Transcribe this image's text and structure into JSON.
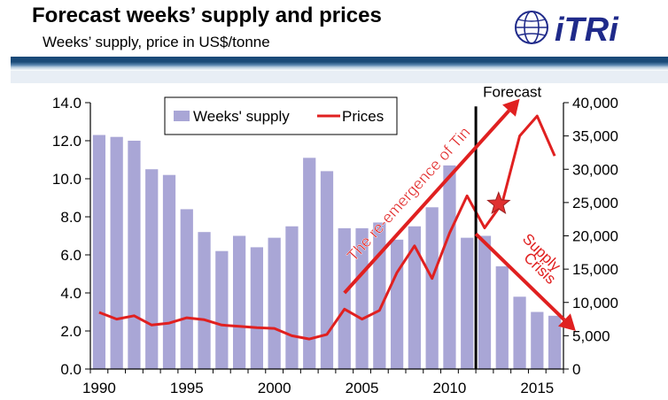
{
  "header": {
    "title": "Forecast weeks’ supply and prices",
    "subtitle": "Weeks’ supply, price in US$/tonne",
    "logo_text": "iTRi"
  },
  "chart_data": {
    "type": "bar+line",
    "x": [
      1990,
      1991,
      1992,
      1993,
      1994,
      1995,
      1996,
      1997,
      1998,
      1999,
      2000,
      2001,
      2002,
      2003,
      2004,
      2005,
      2006,
      2007,
      2008,
      2009,
      2010,
      2011,
      2012,
      2013,
      2014,
      2015,
      2016
    ],
    "series": [
      {
        "name": "Weeks' supply",
        "type": "bar",
        "axis": "left",
        "color": "#a9a6d6",
        "values": [
          12.3,
          12.2,
          12.0,
          10.5,
          10.2,
          8.4,
          7.2,
          6.2,
          7.0,
          6.4,
          6.9,
          7.5,
          11.1,
          10.4,
          7.4,
          7.4,
          7.7,
          6.8,
          7.5,
          8.5,
          10.7,
          6.9,
          7.0,
          5.4,
          3.8,
          3.0,
          2.8
        ]
      },
      {
        "name": "Prices",
        "type": "line",
        "axis": "right",
        "color": "#e02020",
        "values": [
          8500,
          7500,
          8000,
          6600,
          6900,
          7700,
          7400,
          6600,
          6400,
          6200,
          6100,
          5000,
          4500,
          5200,
          9000,
          7500,
          8800,
          14500,
          18500,
          13600,
          20400,
          26000,
          21200,
          24900,
          35000,
          38000,
          32000
        ]
      }
    ],
    "y_left": {
      "min": 0,
      "max": 14,
      "ticks": [
        "0.0",
        "2.0",
        "4.0",
        "6.0",
        "8.0",
        "10.0",
        "12.0",
        "14.0"
      ]
    },
    "y_right": {
      "min": 0,
      "max": 40000,
      "ticks": [
        "0",
        "5,000",
        "10,000",
        "15,000",
        "20,000",
        "25,000",
        "30,000",
        "35,000",
        "40,000"
      ]
    },
    "x_ticks": [
      "1990",
      "1995",
      "2000",
      "2005",
      "2010",
      "2015"
    ],
    "x_tick_values": [
      1990,
      1995,
      2000,
      2005,
      2010,
      2015
    ],
    "forecast_start": 2011.5,
    "legend": {
      "position": "top-center",
      "items": [
        "Weeks' supply",
        "Prices"
      ]
    },
    "grid": false,
    "annotations": {
      "forecast_label": "Forecast",
      "reemergence": "The re-emergence of Tin",
      "supply_crisis_1": "Supply",
      "supply_crisis_2": "Crisis",
      "star_point": {
        "x": 2012.8,
        "price": 24800
      },
      "arrow_up": {
        "from_x": 2004.0,
        "from_y": 4.0,
        "to_x": 2014.0,
        "to_y": 14.2
      },
      "arrow_down": {
        "from_x": 2011.5,
        "from_y": 7.1,
        "to_x": 2017.2,
        "to_y": 2.0
      }
    }
  }
}
